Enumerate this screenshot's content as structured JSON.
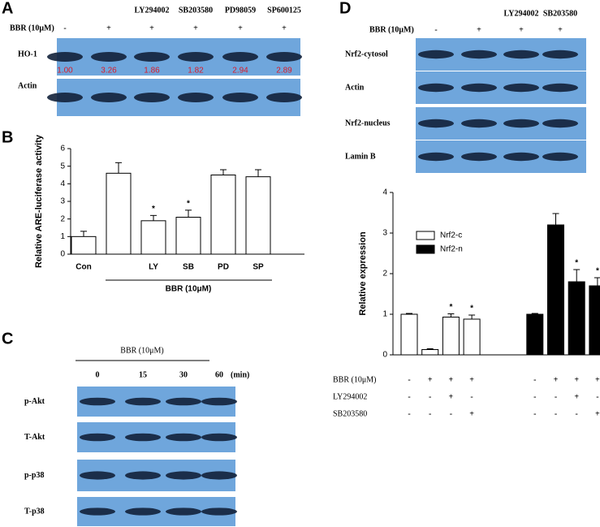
{
  "panel_labels": [
    "A",
    "B",
    "C",
    "D"
  ],
  "panel_a": {
    "columns": [
      "LY294002",
      "SB203580",
      "PD98059",
      "SP600125"
    ],
    "treatment": "BBR (10μM)",
    "signs": [
      "-",
      "+",
      "+",
      "+",
      "+",
      "+"
    ],
    "blots": [
      "HO-1",
      "Actin"
    ],
    "ho1_ratios": [
      "1.00",
      "3.26",
      "1.86",
      "1.82",
      "2.94",
      "2.89"
    ]
  },
  "panel_c": {
    "treatment": "BBR (10μM)",
    "times": [
      "0",
      "15",
      "30",
      "60"
    ],
    "unit": "(min)",
    "blots": [
      "p-Akt",
      "T-Akt",
      "p-p38",
      "T-p38"
    ]
  },
  "panel_d": {
    "columns": [
      "LY294002",
      "SB203580"
    ],
    "treatment": "BBR (10μM)",
    "signs": [
      "-",
      "+",
      "+",
      "+"
    ],
    "blots": [
      "Nrf2-cytosol",
      "Actin",
      "Nrf2-nucleus",
      "Lamin B"
    ]
  },
  "chart_data": [
    {
      "type": "bar",
      "y_label": "Relative ARE-luciferase activity",
      "categories": [
        "Con",
        null,
        "LY",
        "SB",
        "PD",
        "SP"
      ],
      "values": [
        1.0,
        4.6,
        1.9,
        2.1,
        4.5,
        4.4
      ],
      "errors": [
        0.3,
        0.6,
        0.3,
        0.4,
        0.3,
        0.4
      ],
      "color": "#ffffff",
      "ylim": [
        0,
        6
      ],
      "yticks": [
        0,
        1,
        2,
        3,
        4,
        5,
        6
      ],
      "group_label": "BBR (10μM)",
      "annotations": [
        {
          "index": 2,
          "text": "*"
        },
        {
          "index": 3,
          "text": "*"
        }
      ]
    },
    {
      "type": "grouped_bar",
      "y_label": "Relative expression",
      "categories": [
        null,
        null,
        null,
        null,
        null,
        null,
        null,
        null
      ],
      "series": [
        {
          "name": "Nrf2-c",
          "color": "#ffffff",
          "values": [
            1.0,
            0.13,
            0.93,
            0.88,
            null,
            null,
            null,
            null
          ],
          "errors": [
            0.02,
            0.02,
            0.08,
            0.1,
            null,
            null,
            null,
            null
          ]
        },
        {
          "name": "Nrf2-n",
          "color": "#000000",
          "values": [
            null,
            null,
            null,
            null,
            1.0,
            3.2,
            1.8,
            1.7
          ],
          "errors": [
            null,
            null,
            null,
            null,
            0.02,
            0.28,
            0.3,
            0.2
          ]
        }
      ],
      "ylim": [
        0,
        4
      ],
      "yticks": [
        0,
        1,
        2,
        3,
        4
      ],
      "annotations": [
        {
          "series": 0,
          "index": 2,
          "text": "*"
        },
        {
          "series": 0,
          "index": 3,
          "text": "*"
        },
        {
          "series": 1,
          "index": 6,
          "text": "*"
        },
        {
          "series": 1,
          "index": 7,
          "text": "*"
        }
      ],
      "conditions": [
        {
          "label": "BBR (10μM)",
          "signs": [
            "-",
            "+",
            "+",
            "+",
            "-",
            "+",
            "+",
            "+"
          ]
        },
        {
          "label": "LY294002",
          "signs": [
            "-",
            "-",
            "+",
            "-",
            "-",
            "-",
            "+",
            "-"
          ]
        },
        {
          "label": "SB203580",
          "signs": [
            "-",
            "-",
            "-",
            "+",
            "-",
            "-",
            "-",
            "+"
          ]
        }
      ]
    }
  ]
}
